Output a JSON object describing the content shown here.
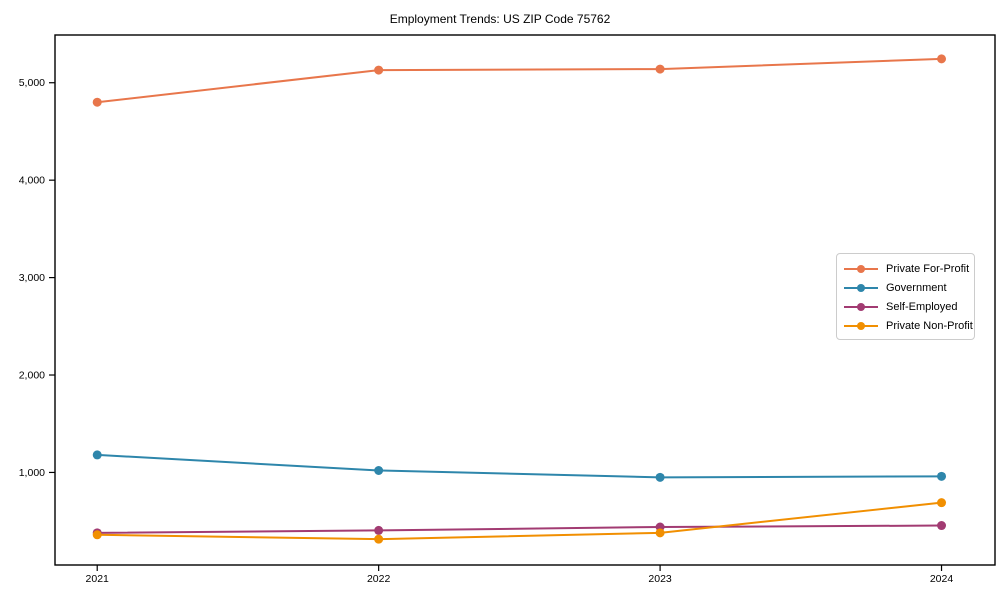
{
  "title": "Employment Trends: US ZIP Code 75762",
  "chart_data": {
    "type": "line",
    "title": "Employment Trends: US ZIP Code 75762",
    "xlabel": "",
    "ylabel": "",
    "x": [
      2021,
      2022,
      2023,
      2024
    ],
    "x_tick_labels": [
      "2021",
      "2022",
      "2023",
      "2024"
    ],
    "yticks": [
      1000,
      2000,
      3000,
      4000,
      5000
    ],
    "ytick_labels": [
      "1,000",
      "2,000",
      "3,000",
      "4,000",
      "5,000"
    ],
    "xlim": [
      2020.85,
      2024.19
    ],
    "ylim": [
      50,
      5490
    ],
    "grid": false,
    "legend_position": "center right",
    "series": [
      {
        "name": "Private For-Profit",
        "color": "#E8764B",
        "values": [
          4800,
          5130,
          5140,
          5245
        ]
      },
      {
        "name": "Government",
        "color": "#2E86AB",
        "values": [
          1180,
          1020,
          950,
          960
        ]
      },
      {
        "name": "Self-Employed",
        "color": "#A23B72",
        "values": [
          380,
          405,
          440,
          455
        ]
      },
      {
        "name": "Private Non-Profit",
        "color": "#F18F01",
        "values": [
          360,
          315,
          380,
          690
        ]
      }
    ],
    "axis_color": "#000000",
    "tick_font_size": 10.5
  }
}
